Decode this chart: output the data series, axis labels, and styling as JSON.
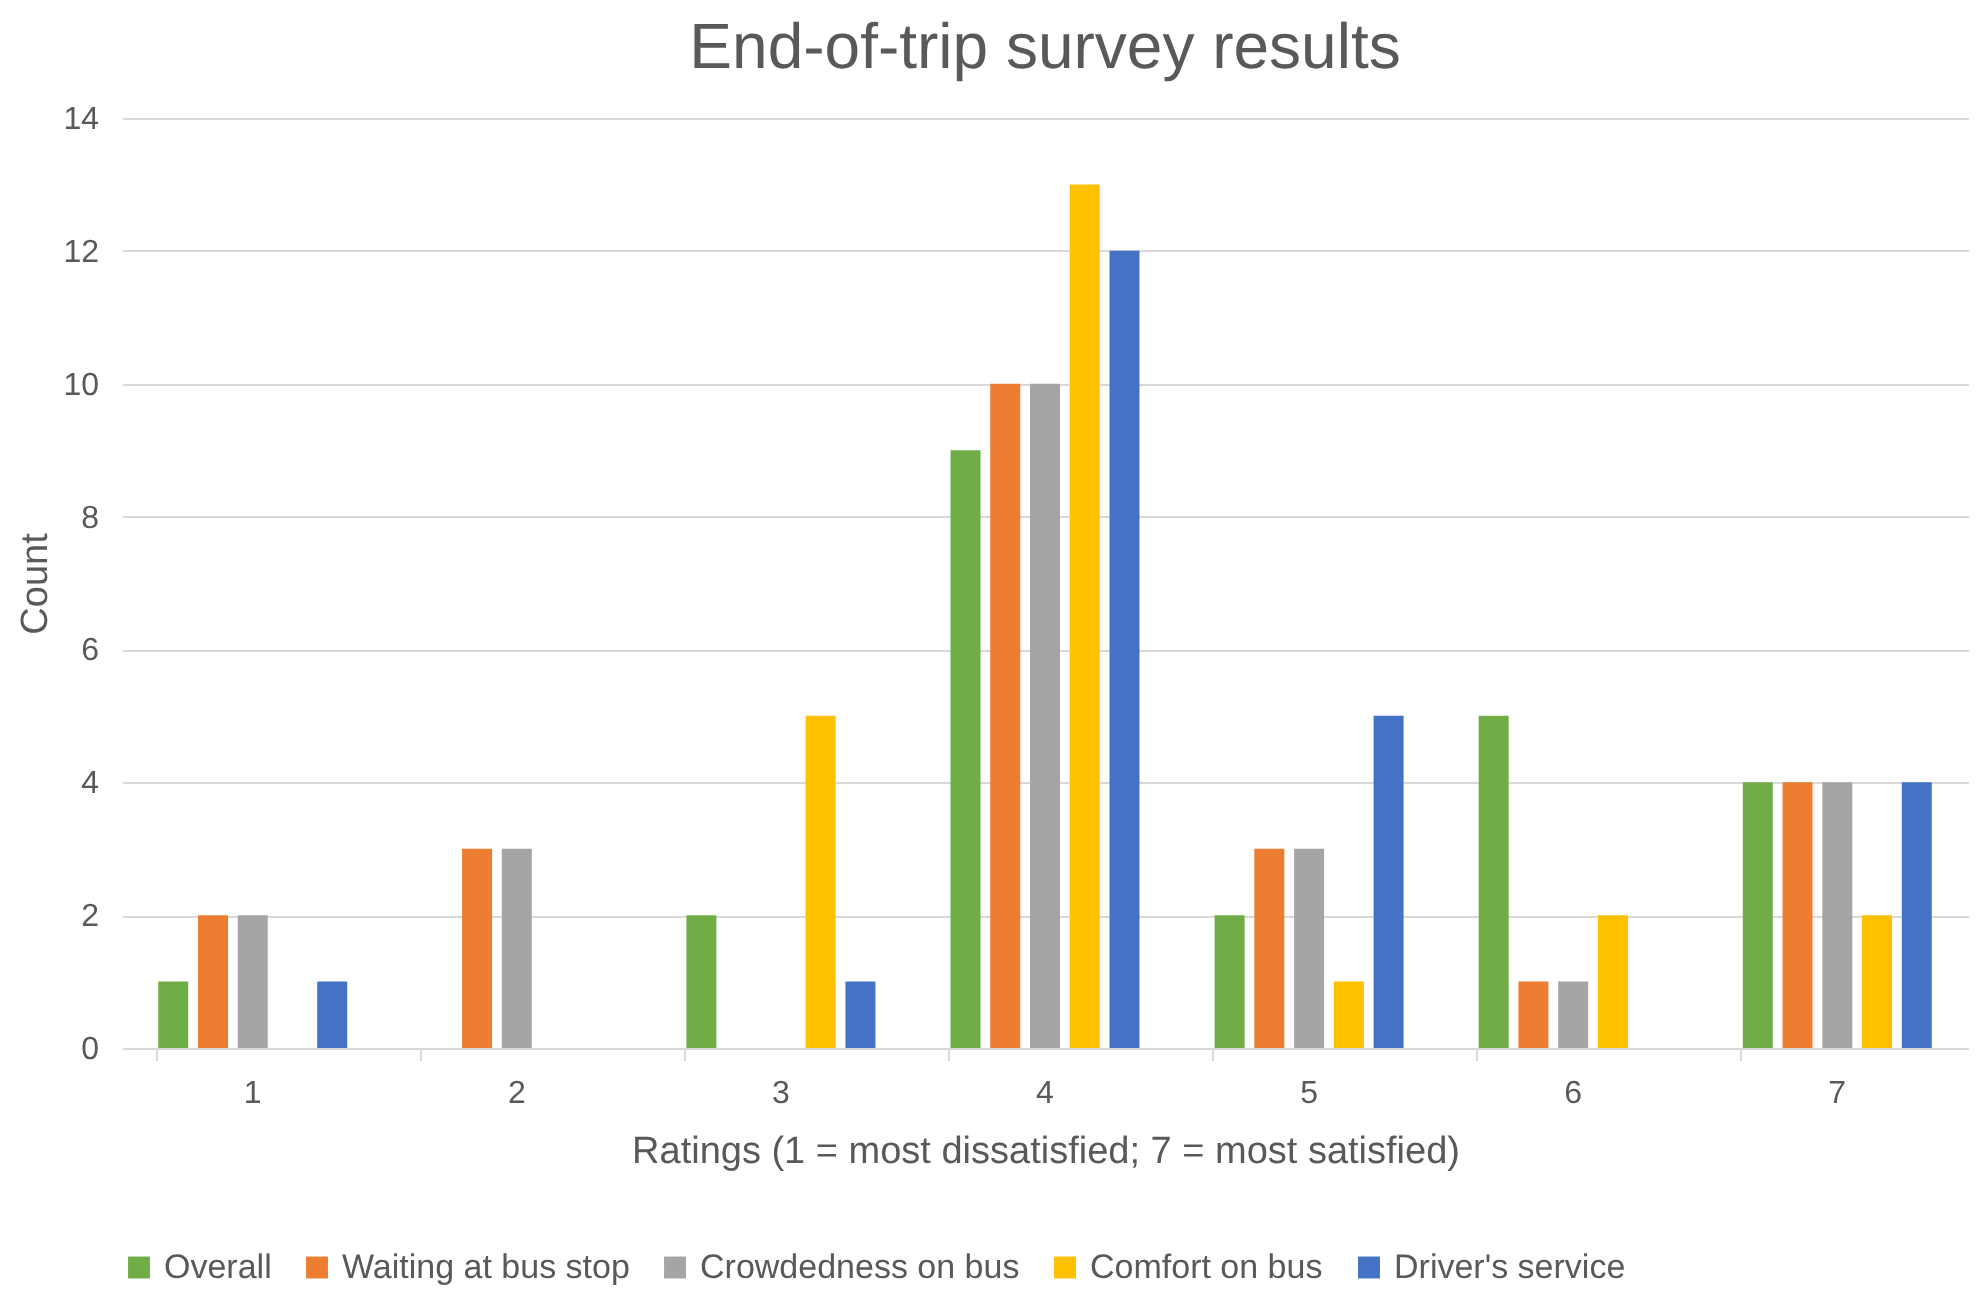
{
  "chart_data": {
    "type": "bar",
    "title": "End-of-trip survey results",
    "xlabel": "Ratings (1 = most dissatisfied; 7 = most satisfied)",
    "ylabel": "Count",
    "categories": [
      "1",
      "2",
      "3",
      "4",
      "5",
      "6",
      "7"
    ],
    "series": [
      {
        "name": "Overall",
        "color": "#70ad47",
        "values": [
          1,
          0,
          2,
          9,
          2,
          5,
          4
        ]
      },
      {
        "name": "Waiting at bus stop",
        "color": "#ed7d31",
        "values": [
          2,
          3,
          0,
          10,
          3,
          1,
          4
        ]
      },
      {
        "name": "Crowdedness on bus",
        "color": "#a5a5a5",
        "values": [
          2,
          3,
          0,
          10,
          3,
          1,
          4
        ]
      },
      {
        "name": "Comfort on bus",
        "color": "#ffc000",
        "values": [
          0,
          0,
          5,
          13,
          1,
          2,
          2
        ]
      },
      {
        "name": "Driver's service",
        "color": "#4472c4",
        "values": [
          1,
          0,
          1,
          12,
          5,
          0,
          4
        ]
      }
    ],
    "ylim": [
      0,
      14
    ],
    "yticks": [
      0,
      2,
      4,
      6,
      8,
      10,
      12,
      14
    ],
    "grid": "y",
    "legend": "bottom"
  }
}
